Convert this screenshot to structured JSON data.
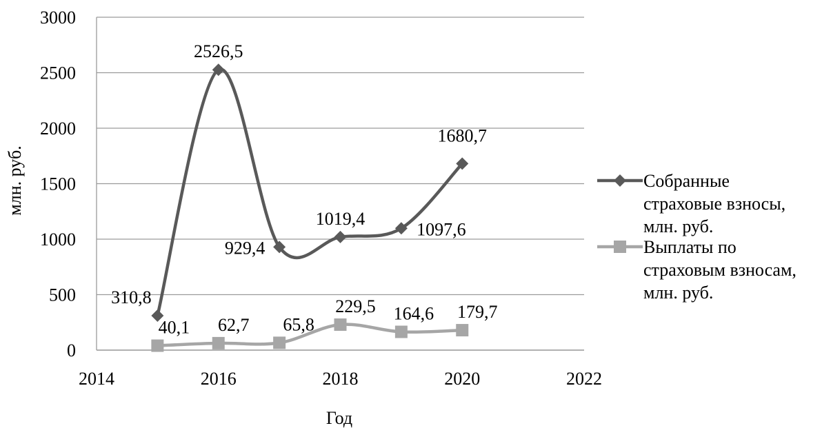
{
  "chart_data": {
    "type": "line",
    "title": "",
    "xlabel": "Год",
    "ylabel": "млн. руб.",
    "xlim": [
      2014,
      2022
    ],
    "ylim": [
      0,
      3000
    ],
    "xticks": [
      2014,
      2016,
      2018,
      2020,
      2022
    ],
    "yticks": [
      0,
      500,
      1000,
      1500,
      2000,
      2500,
      3000
    ],
    "xtick_labels": [
      "2014",
      "2016",
      "2018",
      "2020",
      "2022"
    ],
    "ytick_labels": [
      "0",
      "500",
      "1000",
      "1500",
      "2000",
      "2500",
      "3000"
    ],
    "grid": "horizontal",
    "legend_position": "right",
    "smooth": true,
    "series": [
      {
        "name": "Собранные страховые взносы, млн. руб.",
        "legend_lines": [
          "Собранные",
          "страховые взносы,",
          "млн. руб."
        ],
        "color": "#595959",
        "marker": "diamond",
        "x": [
          2015,
          2016,
          2017,
          2018,
          2019,
          2020
        ],
        "y": [
          310.8,
          2526.5,
          929.4,
          1019.4,
          1097.6,
          1680.7
        ],
        "labels": [
          "310,8",
          "2526,5",
          "929,4",
          "1019,4",
          "1097,6",
          "1680,7"
        ]
      },
      {
        "name": "Выплаты по страховым взносам, млн. руб.",
        "legend_lines": [
          "Выплаты по",
          "страховым взносам,",
          "млн. руб."
        ],
        "color": "#a6a6a6",
        "marker": "square",
        "x": [
          2015,
          2016,
          2017,
          2018,
          2019,
          2020
        ],
        "y": [
          40.1,
          62.7,
          65.8,
          229.5,
          164.6,
          179.7
        ],
        "labels": [
          "40,1",
          "62,7",
          "65,8",
          "229,5",
          "164,6",
          "179,7"
        ]
      }
    ]
  }
}
